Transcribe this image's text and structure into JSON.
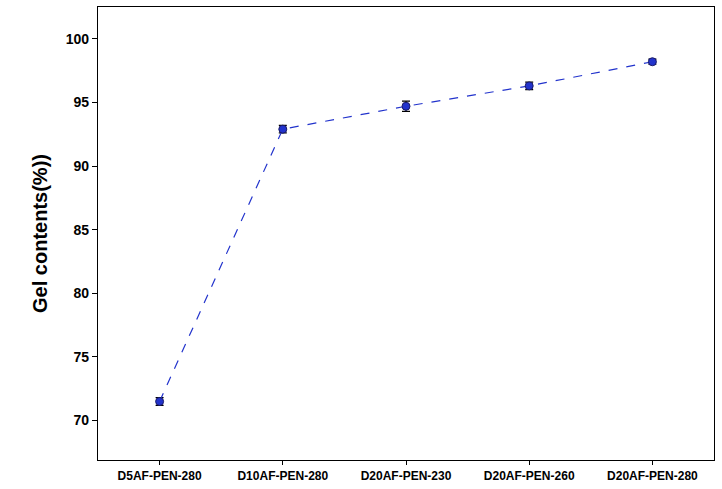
{
  "chart_data": {
    "type": "line",
    "y_label": "Gel contents(%))",
    "categories": [
      "D5AF-PEN-280",
      "D10AF-PEN-280",
      "D20AF-PEN-230",
      "D20AF-PEN-260",
      "D20AF-PEN-280"
    ],
    "values": [
      71.5,
      92.9,
      94.7,
      96.3,
      98.2
    ],
    "errors": [
      0.3,
      0.3,
      0.4,
      0.3,
      0.2
    ],
    "color": "#2233cc",
    "marker": "circle",
    "line_style": "dash",
    "ylim": [
      66.9,
      102.5
    ],
    "yticks": [
      70,
      75,
      80,
      85,
      90,
      95,
      100
    ],
    "grid": false
  }
}
